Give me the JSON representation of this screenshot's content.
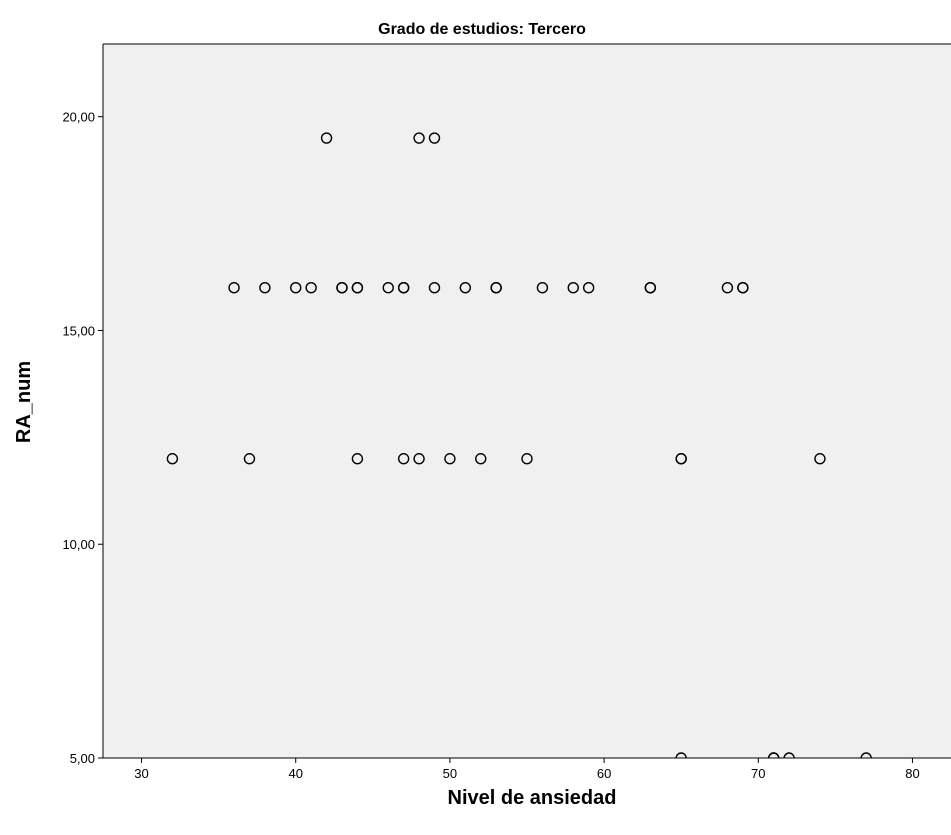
{
  "chart_data": {
    "type": "scatter",
    "title": "Grado de estudios: Tercero",
    "xlabel": "Nivel de ansiedad",
    "ylabel": "RA_num",
    "xlim": [
      27.5,
      82.5
    ],
    "ylim": [
      5.0,
      21.7
    ],
    "x_ticks": [
      30,
      40,
      50,
      60,
      70,
      80
    ],
    "x_tick_labels": [
      "30",
      "40",
      "50",
      "60",
      "70",
      "80"
    ],
    "y_ticks": [
      5,
      10,
      15,
      20
    ],
    "y_tick_labels": [
      "5,00",
      "10,00",
      "15,00",
      "20,00"
    ],
    "grid": false,
    "legend": "none",
    "colors": {
      "plot_background": "#f0f0f0",
      "marker_stroke": "#000000",
      "axis": "#000000"
    },
    "series": [
      {
        "points": [
          {
            "x": 42,
            "y": 19.5
          },
          {
            "x": 48,
            "y": 19.5
          },
          {
            "x": 49,
            "y": 19.5
          },
          {
            "x": 36,
            "y": 16
          },
          {
            "x": 38,
            "y": 16
          },
          {
            "x": 40,
            "y": 16
          },
          {
            "x": 41,
            "y": 16
          },
          {
            "x": 43,
            "y": 16
          },
          {
            "x": 43,
            "y": 16
          },
          {
            "x": 44,
            "y": 16
          },
          {
            "x": 44,
            "y": 16
          },
          {
            "x": 46,
            "y": 16
          },
          {
            "x": 47,
            "y": 16
          },
          {
            "x": 47,
            "y": 16
          },
          {
            "x": 49,
            "y": 16
          },
          {
            "x": 51,
            "y": 16
          },
          {
            "x": 53,
            "y": 16
          },
          {
            "x": 53,
            "y": 16
          },
          {
            "x": 56,
            "y": 16
          },
          {
            "x": 58,
            "y": 16
          },
          {
            "x": 59,
            "y": 16
          },
          {
            "x": 63,
            "y": 16
          },
          {
            "x": 63,
            "y": 16
          },
          {
            "x": 68,
            "y": 16
          },
          {
            "x": 69,
            "y": 16
          },
          {
            "x": 69,
            "y": 16
          },
          {
            "x": 32,
            "y": 12
          },
          {
            "x": 37,
            "y": 12
          },
          {
            "x": 44,
            "y": 12
          },
          {
            "x": 47,
            "y": 12
          },
          {
            "x": 48,
            "y": 12
          },
          {
            "x": 50,
            "y": 12
          },
          {
            "x": 52,
            "y": 12
          },
          {
            "x": 55,
            "y": 12
          },
          {
            "x": 65,
            "y": 12
          },
          {
            "x": 65,
            "y": 12
          },
          {
            "x": 74,
            "y": 12
          },
          {
            "x": 65,
            "y": 5
          },
          {
            "x": 71,
            "y": 5
          },
          {
            "x": 71,
            "y": 5
          },
          {
            "x": 72,
            "y": 5
          },
          {
            "x": 77,
            "y": 5
          }
        ]
      }
    ]
  }
}
